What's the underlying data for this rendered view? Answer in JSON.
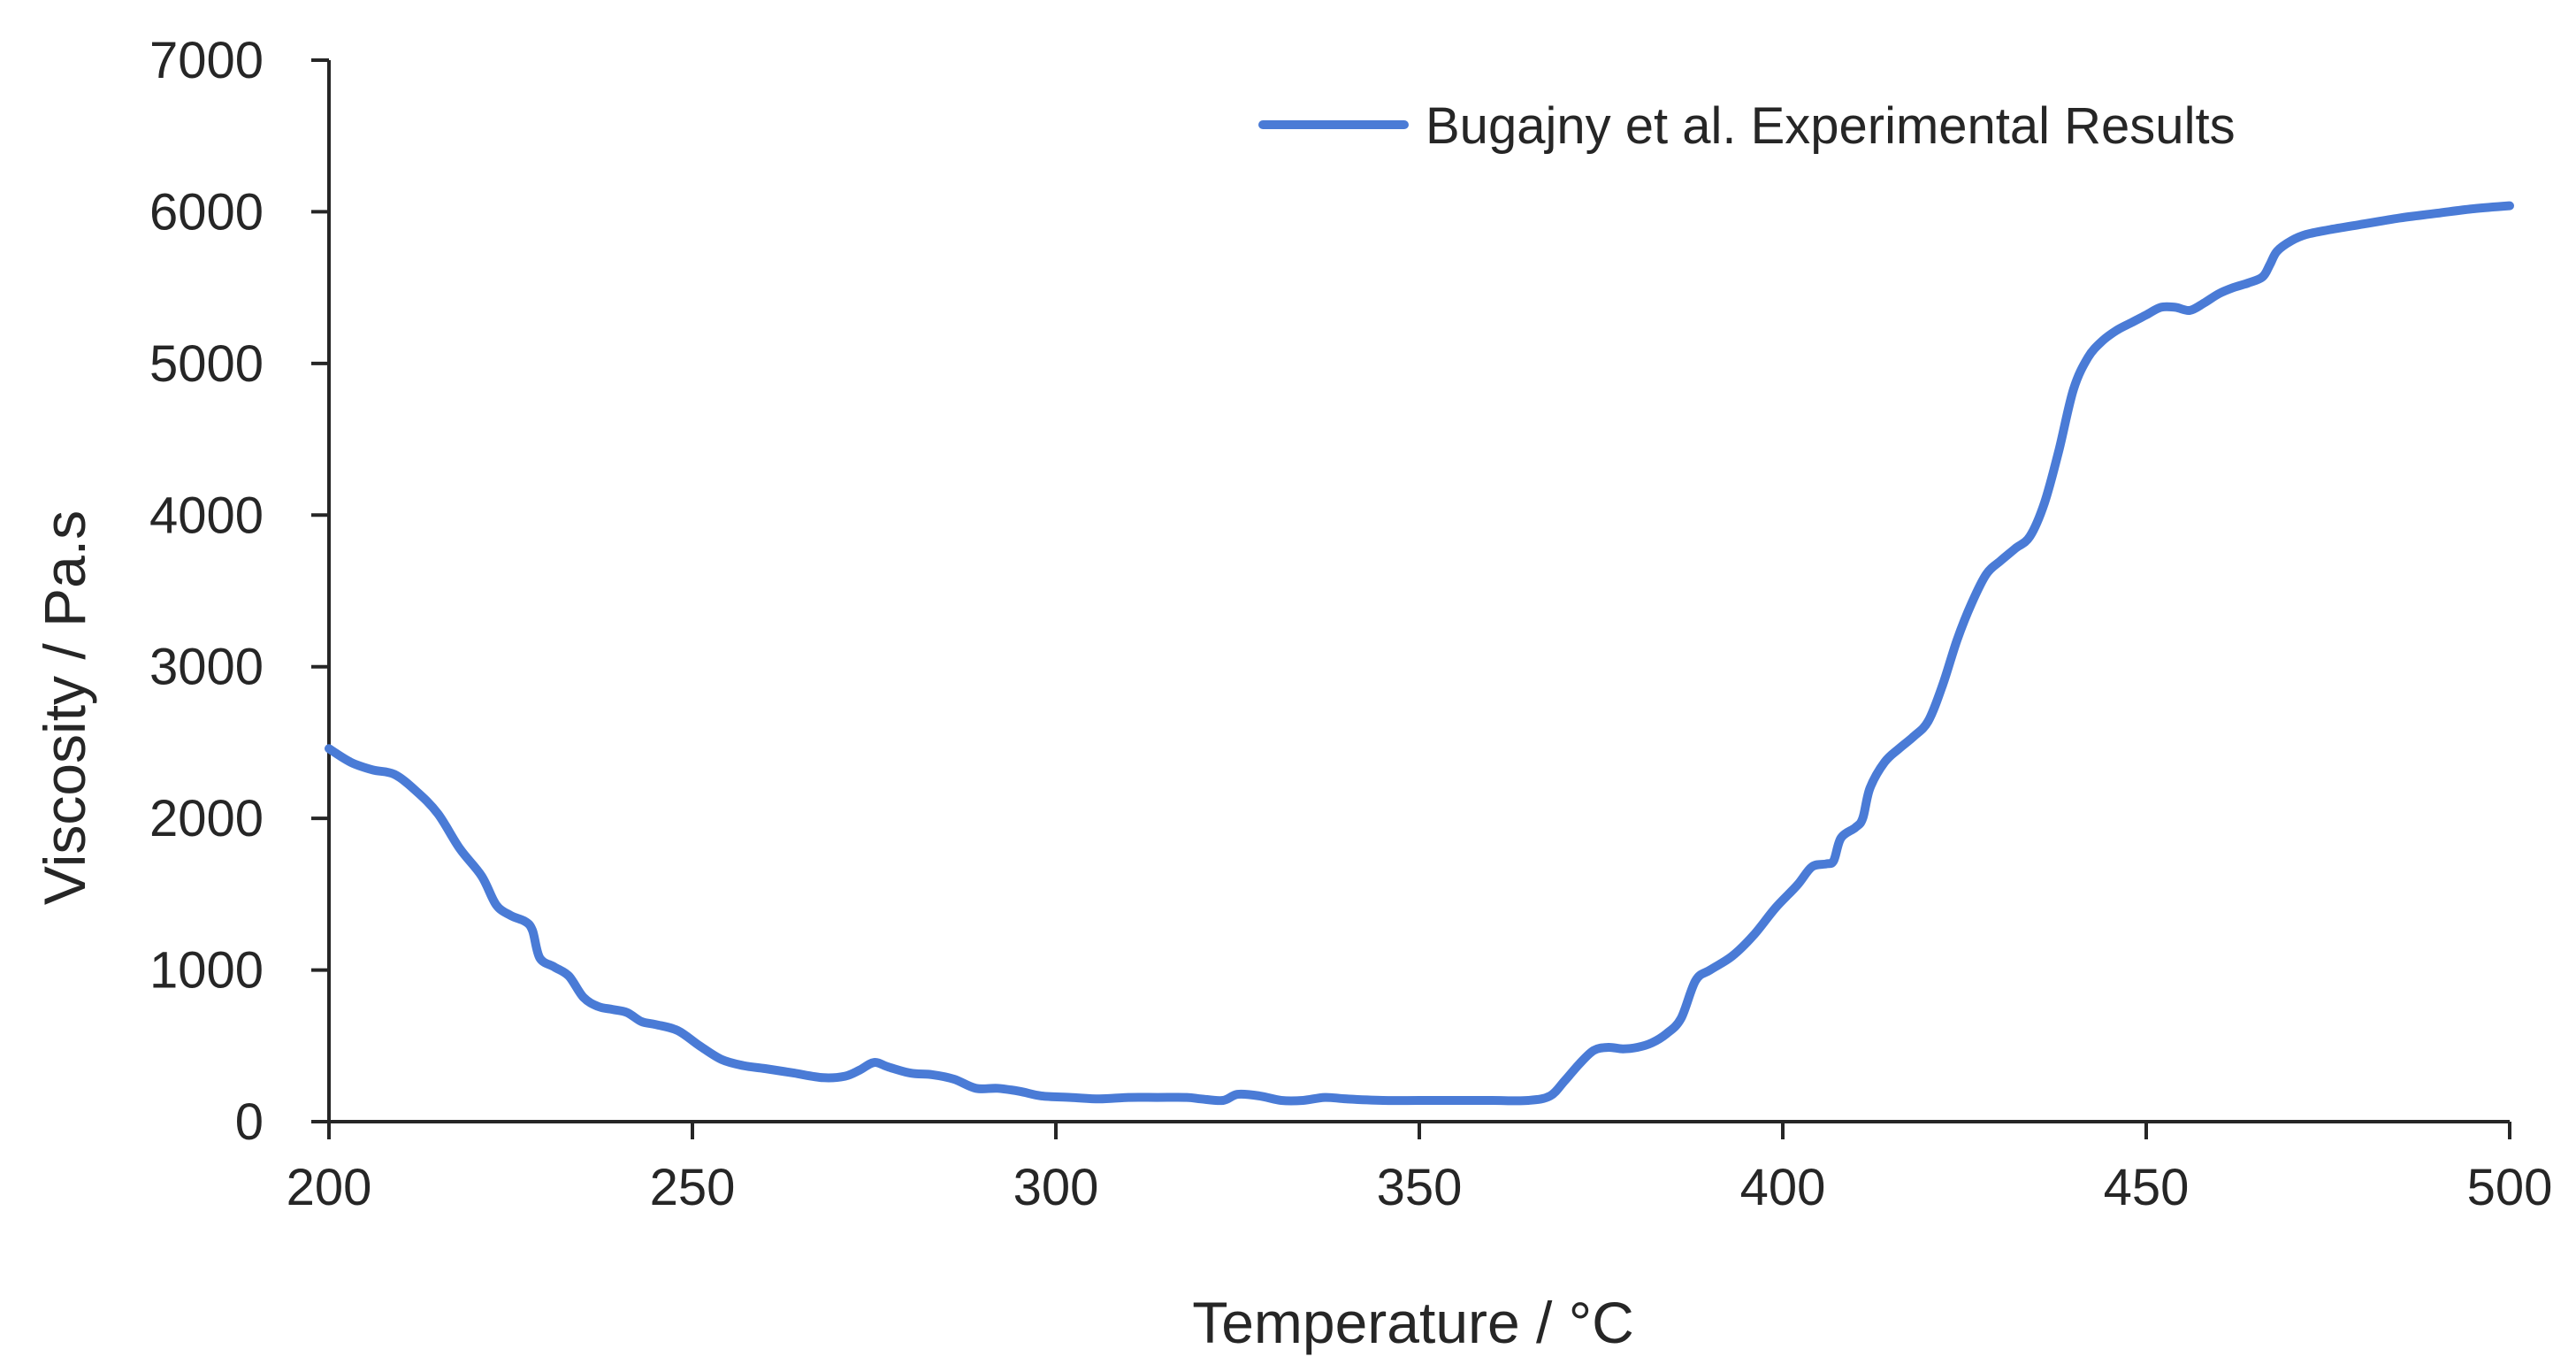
{
  "colors": {
    "series": "#4a7bd6",
    "axis": "#262626",
    "text": "#262626",
    "background": "#ffffff"
  },
  "chart_data": {
    "type": "line",
    "xlabel": "Temperature / °C",
    "ylabel": "Viscosity / Pa.s",
    "xlim": [
      200,
      500
    ],
    "ylim": [
      0,
      7000
    ],
    "x_ticks": [
      200,
      250,
      300,
      350,
      400,
      450,
      500
    ],
    "y_ticks": [
      0,
      1000,
      2000,
      3000,
      4000,
      5000,
      6000,
      7000
    ],
    "grid": false,
    "legend": {
      "position": "top-right"
    },
    "series": [
      {
        "name": "Bugajny et al. Experimental Results",
        "x": [
          200,
          203,
          206,
          209,
          212,
          215,
          218,
          221,
          223,
          225,
          227,
          228,
          229,
          231,
          233,
          235,
          237,
          239,
          241,
          243,
          245,
          248,
          251,
          254,
          257,
          260,
          264,
          268,
          271,
          273,
          275,
          277,
          280,
          283,
          286,
          289,
          292,
          295,
          298,
          302,
          306,
          310,
          314,
          318,
          320,
          323,
          325,
          328,
          331,
          334,
          337,
          340,
          345,
          350,
          355,
          360,
          365,
          368,
          370,
          372,
          374,
          376,
          378,
          380,
          382,
          384,
          386,
          388,
          390,
          393,
          396,
          399,
          402,
          404,
          406,
          407,
          408,
          410,
          411,
          412,
          414,
          416,
          418,
          420,
          422,
          424,
          426,
          428,
          430,
          432,
          434,
          436,
          438,
          440,
          442,
          444,
          446,
          448,
          450,
          452,
          454,
          456,
          458,
          460,
          462,
          464,
          466,
          467,
          468,
          470,
          472,
          475,
          480,
          485,
          490,
          495,
          500
        ],
        "y": [
          2460,
          2370,
          2320,
          2290,
          2180,
          2030,
          1800,
          1620,
          1430,
          1360,
          1320,
          1260,
          1080,
          1020,
          960,
          820,
          760,
          740,
          720,
          660,
          640,
          600,
          500,
          410,
          370,
          350,
          320,
          290,
          300,
          340,
          390,
          360,
          320,
          310,
          280,
          220,
          220,
          200,
          170,
          160,
          150,
          160,
          160,
          160,
          150,
          140,
          180,
          170,
          140,
          140,
          160,
          150,
          140,
          140,
          140,
          140,
          140,
          170,
          270,
          380,
          470,
          490,
          480,
          490,
          520,
          580,
          680,
          930,
          1000,
          1090,
          1230,
          1410,
          1560,
          1680,
          1700,
          1720,
          1870,
          1940,
          2000,
          2200,
          2370,
          2460,
          2540,
          2640,
          2880,
          3180,
          3420,
          3610,
          3700,
          3780,
          3860,
          4080,
          4430,
          4830,
          5040,
          5150,
          5220,
          5270,
          5320,
          5370,
          5370,
          5350,
          5400,
          5460,
          5500,
          5530,
          5570,
          5650,
          5740,
          5810,
          5850,
          5880,
          5920,
          5960,
          5990,
          6020,
          6040
        ]
      }
    ]
  }
}
